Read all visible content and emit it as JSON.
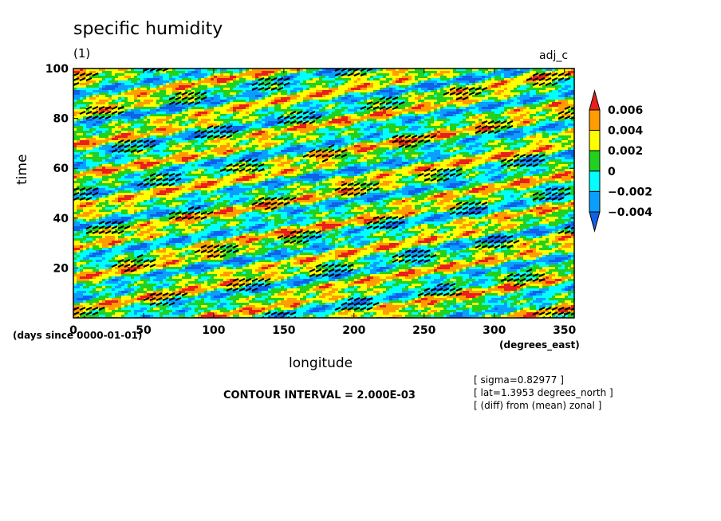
{
  "header": {
    "title": "specific humidity",
    "subtitle": "(1)",
    "experiment": "adj_c"
  },
  "axes": {
    "ylabel": "time",
    "xlabel": "longitude",
    "y_units": "(days since 0000-01-01)",
    "x_units": "(degrees_east)"
  },
  "footer": {
    "contour_interval": "CONTOUR INTERVAL = 2.000E-03",
    "notes": [
      "[ sigma=0.82977 ]",
      "[ lat=1.3953 degrees_north ]",
      "[ (diff) from (mean) zonal ]"
    ]
  },
  "chart_data": {
    "type": "heatmap",
    "title": "specific humidity",
    "subtitle": "(1)",
    "xlabel": "longitude",
    "ylabel": "time",
    "xlim": [
      0,
      357
    ],
    "ylim": [
      0,
      100
    ],
    "x_ticks": [
      "0",
      "50",
      "100",
      "150",
      "200",
      "250",
      "300",
      "350"
    ],
    "x_tick_values": [
      0,
      50,
      100,
      150,
      200,
      250,
      300,
      350
    ],
    "y_ticks": [
      "20",
      "40",
      "60",
      "80",
      "100"
    ],
    "y_tick_values": [
      20,
      40,
      60,
      80,
      100
    ],
    "colorbar": {
      "labels": [
        "0.006",
        "0.004",
        "0.002",
        "0",
        "−0.002",
        "−0.004"
      ],
      "colors": [
        "#e8201c",
        "#ff9d00",
        "#ffff00",
        "#22d020",
        "#00ffff",
        "#0a9eff",
        "#1060e8"
      ]
    },
    "field_colors": {
      "lt_m004": "#1060e8",
      "m004_m002": "#0a9eff",
      "m002_0": "#00ffff",
      "0_002": "#22d020",
      "002_004": "#ffff00",
      "004_006": "#ff9d00",
      "gt_006": "#e8201c",
      "hatch": "#000000"
    }
  }
}
